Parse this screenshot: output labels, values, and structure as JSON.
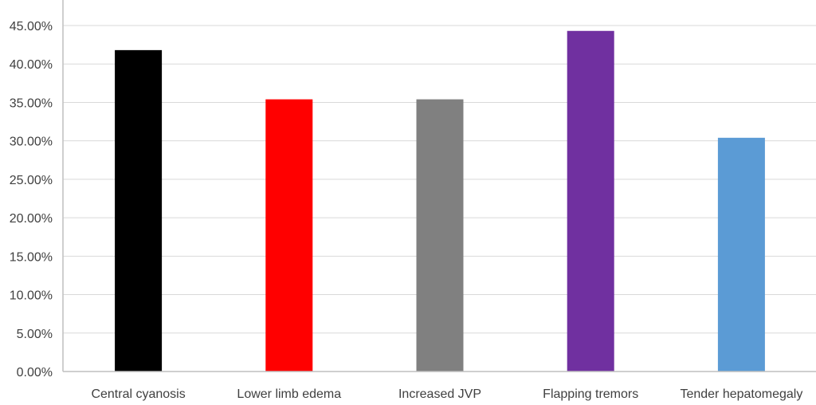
{
  "chart_data": {
    "type": "bar",
    "title": "",
    "xlabel": "",
    "ylabel": "",
    "categories": [
      "Central cyanosis",
      "Lower limb edema",
      "Increased JVP",
      "Flapping tremors",
      "Tender hepatomegaly"
    ],
    "values": [
      0.418,
      0.354,
      0.354,
      0.443,
      0.304
    ],
    "bar_colors": [
      "#000000",
      "#ff0000",
      "#808080",
      "#7030a0",
      "#5b9bd5"
    ],
    "ylim": [
      0,
      0.45
    ],
    "yticks": [
      0,
      0.05,
      0.1,
      0.15,
      0.2,
      0.25,
      0.3,
      0.35,
      0.4,
      0.45
    ],
    "ytick_labels": [
      "0.00%",
      "5.00%",
      "10.00%",
      "15.00%",
      "20.00%",
      "25.00%",
      "30.00%",
      "35.00%",
      "40.00%",
      "45.00%"
    ],
    "grid": true,
    "legend": "none",
    "gridline_color": "#d9d9d9",
    "axis_color": "#bfbfbf"
  }
}
